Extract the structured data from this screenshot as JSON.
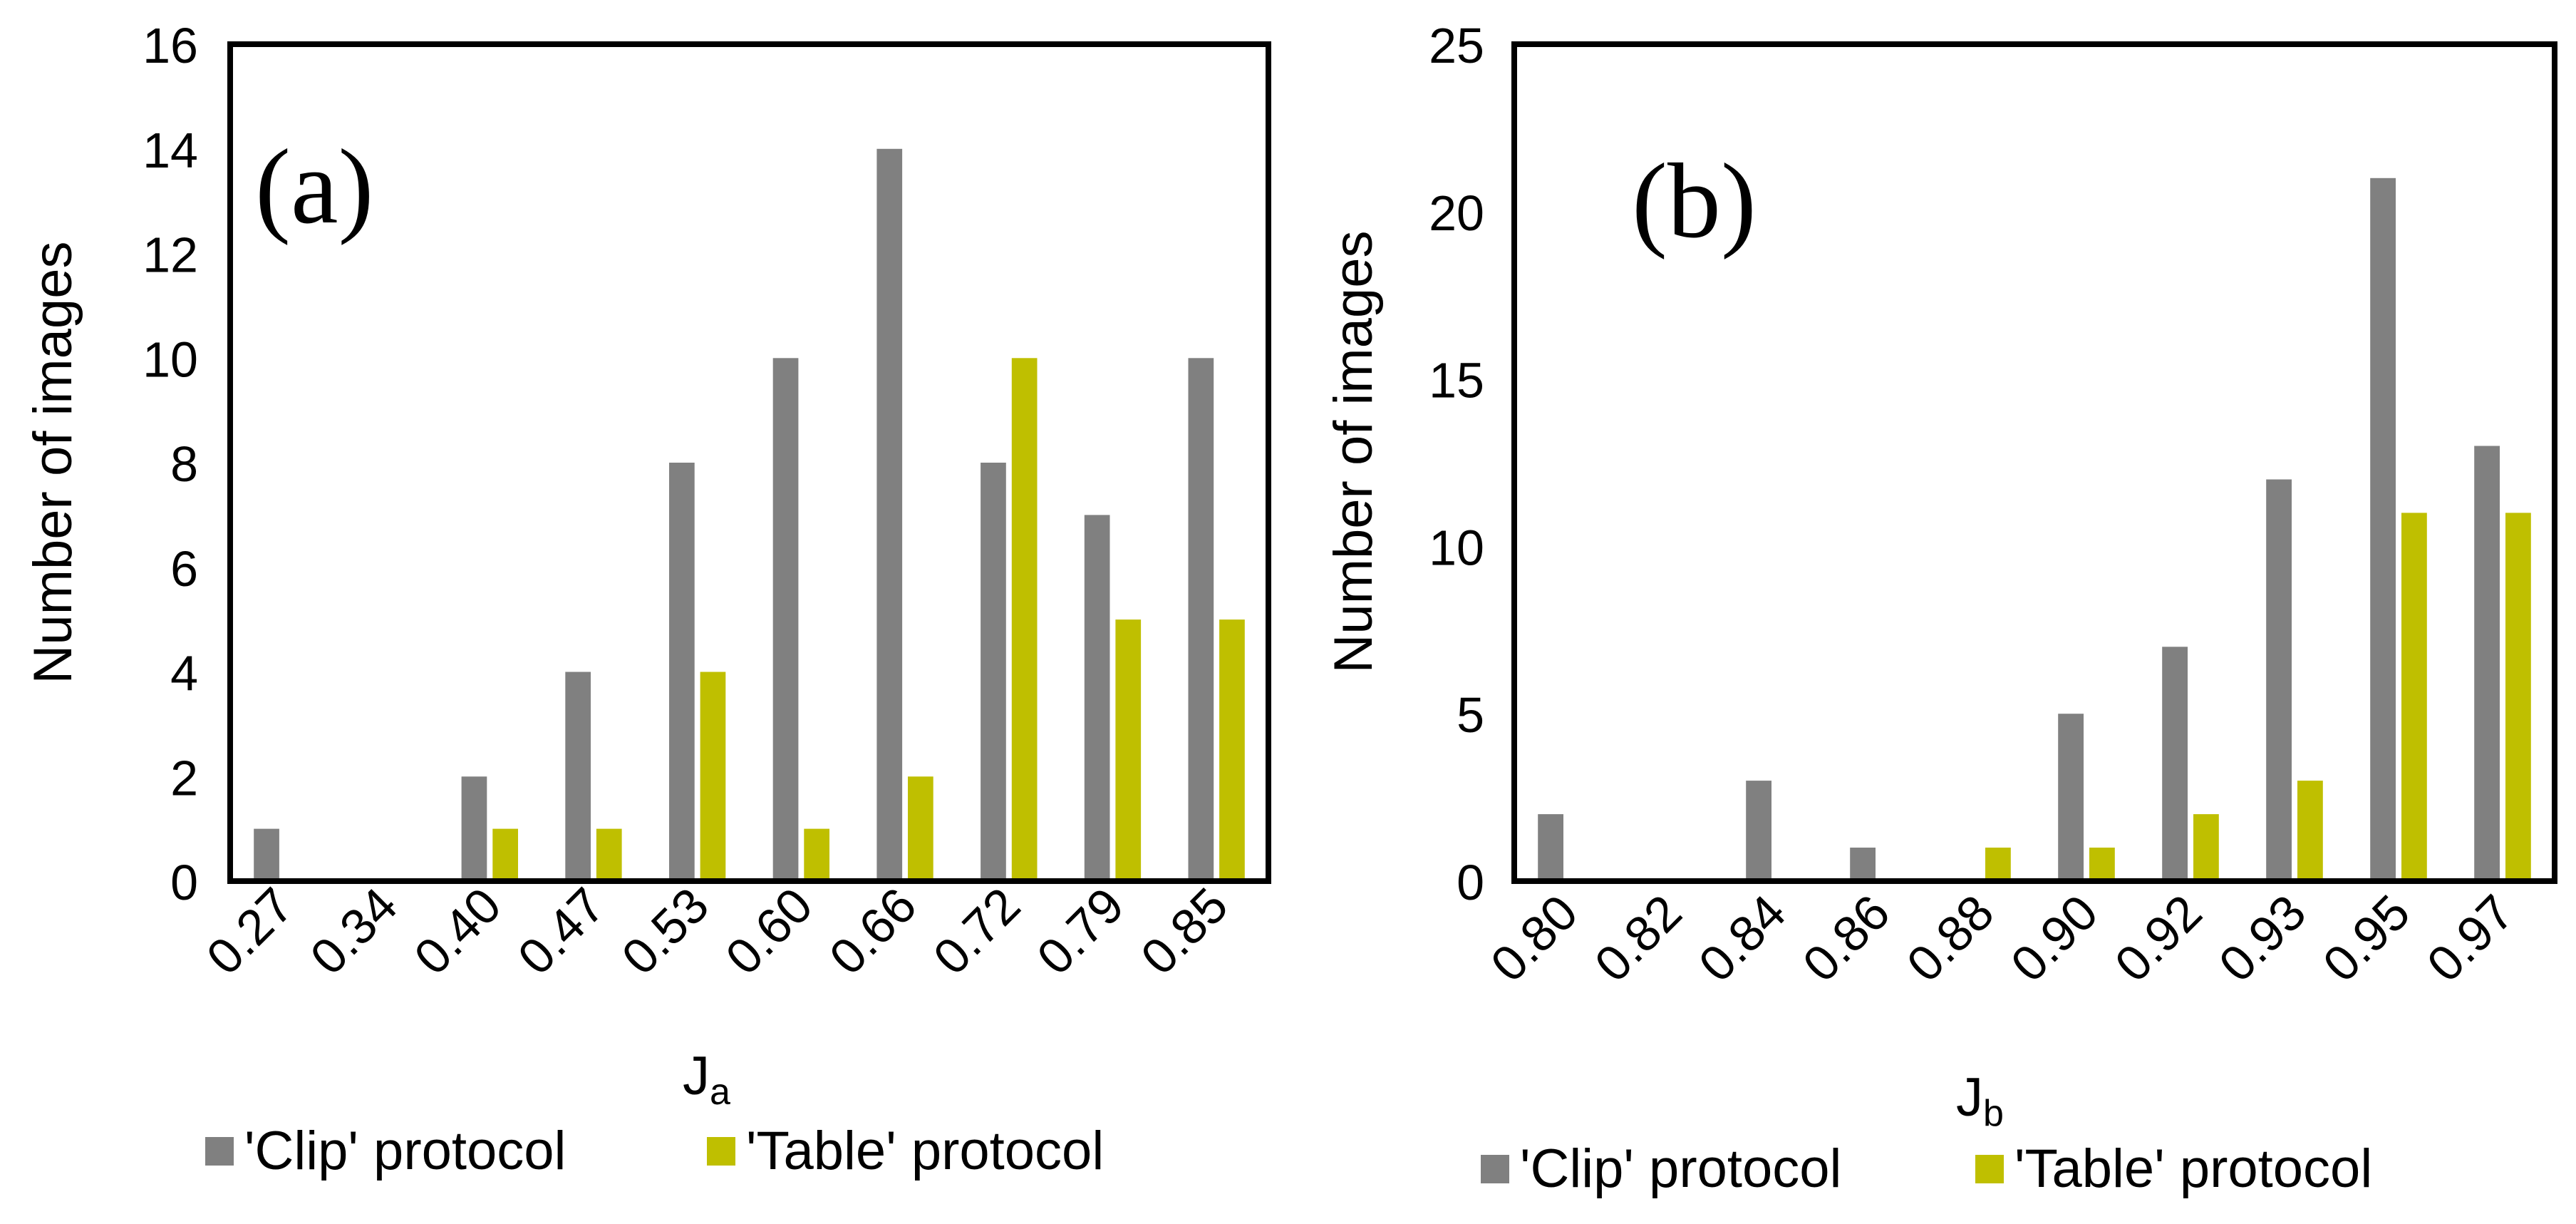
{
  "colors": {
    "clip": "#808080",
    "table": "#BFBF00",
    "axis": "#000000",
    "background": "#FFFFFF"
  },
  "chart_data": [
    {
      "type": "bar",
      "panel_label": "(a)",
      "xlabel_main": "J",
      "xlabel_sub": "a",
      "ylabel": "Number of images",
      "categories": [
        "0.27",
        "0.34",
        "0.40",
        "0.47",
        "0.53",
        "0.60",
        "0.66",
        "0.72",
        "0.79",
        "0.85"
      ],
      "series": [
        {
          "name": "'Clip' protocol",
          "values": [
            1,
            0,
            2,
            4,
            8,
            10,
            14,
            8,
            7,
            10
          ]
        },
        {
          "name": "'Table' protocol",
          "values": [
            0,
            0,
            1,
            1,
            4,
            1,
            2,
            10,
            5,
            5
          ]
        }
      ],
      "ylim": [
        0,
        16
      ],
      "yticks": [
        "0",
        "2",
        "4",
        "6",
        "8",
        "10",
        "12",
        "14",
        "16"
      ],
      "grid": false,
      "legend_position": "bottom"
    },
    {
      "type": "bar",
      "panel_label": "(b)",
      "xlabel_main": "J",
      "xlabel_sub": "b",
      "ylabel": "Number of images",
      "categories": [
        "0.80",
        "0.82",
        "0.84",
        "0.86",
        "0.88",
        "0.90",
        "0.92",
        "0.93",
        "0.95",
        "0.97"
      ],
      "series": [
        {
          "name": "'Clip' protocol",
          "values": [
            2,
            0,
            3,
            1,
            0,
            5,
            7,
            12,
            21,
            13
          ]
        },
        {
          "name": "'Table' protocol",
          "values": [
            0,
            0,
            0,
            0,
            1,
            1,
            2,
            3,
            11,
            11
          ]
        }
      ],
      "ylim": [
        0,
        25
      ],
      "yticks": [
        "0",
        "5",
        "10",
        "15",
        "20",
        "25"
      ],
      "grid": false,
      "legend_position": "bottom"
    }
  ]
}
